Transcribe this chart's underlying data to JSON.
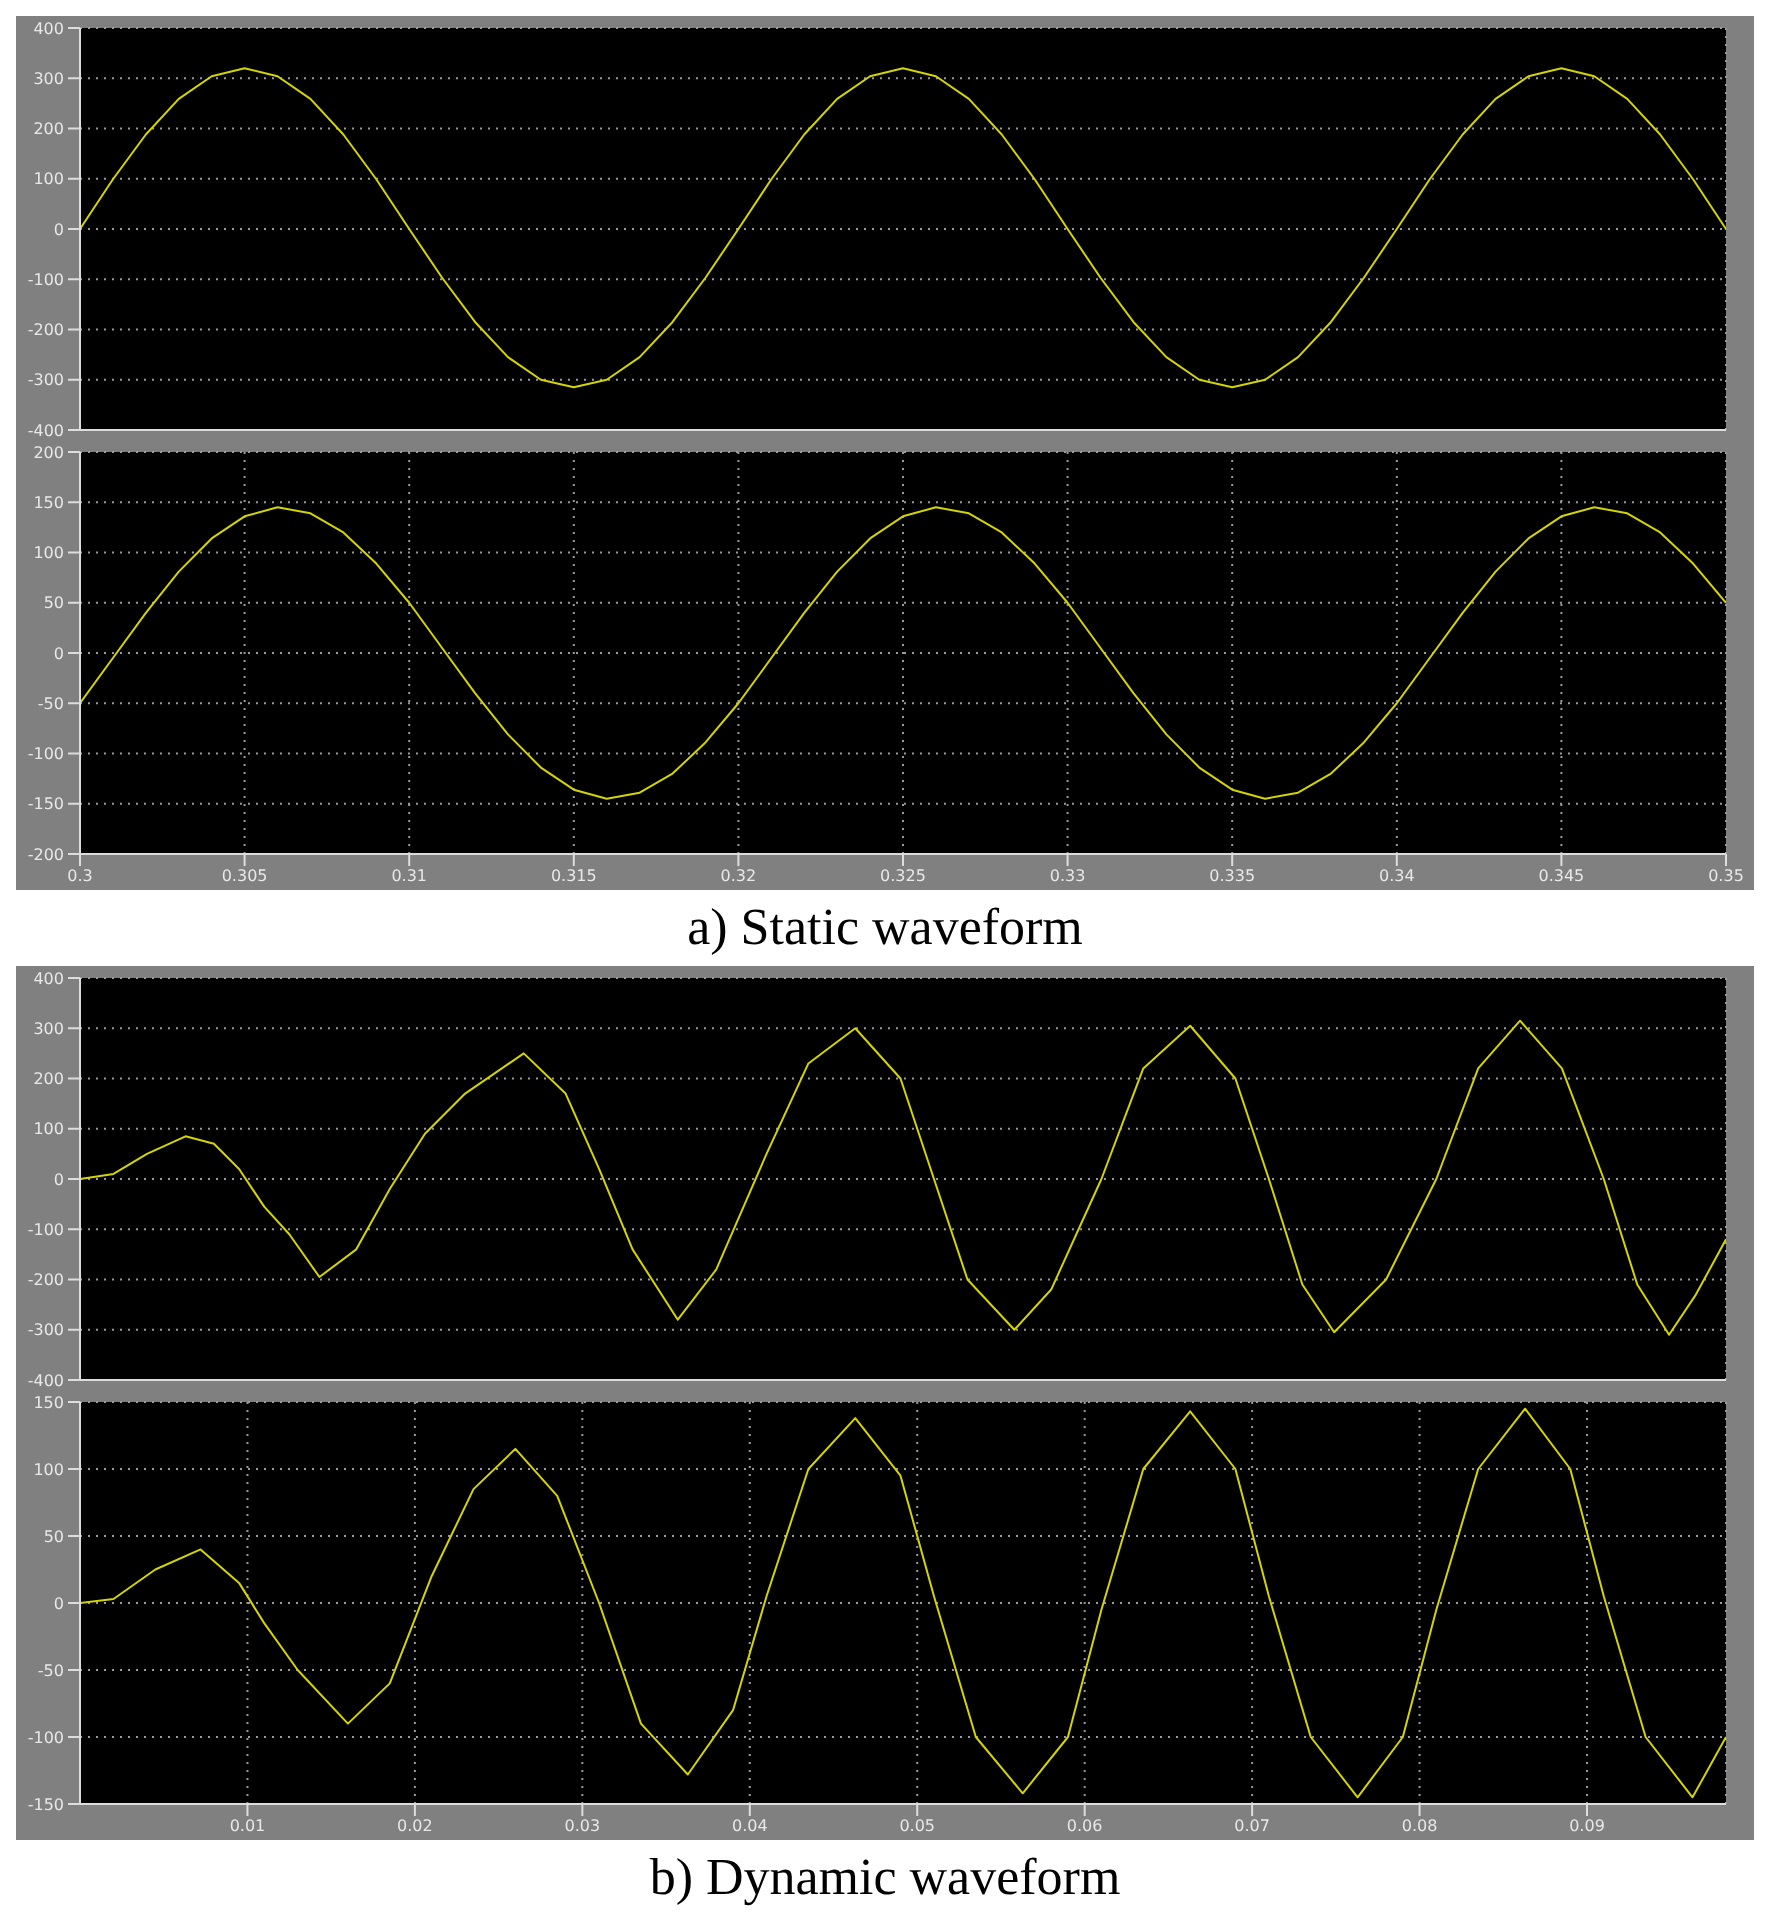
{
  "chart_data": [
    {
      "type": "line",
      "color": "#d4d400",
      "x": [
        0.3,
        0.301,
        0.302,
        0.303,
        0.304,
        0.305,
        0.306,
        0.307,
        0.308,
        0.309,
        0.31,
        0.311,
        0.312,
        0.313,
        0.314,
        0.315,
        0.316,
        0.317,
        0.318,
        0.319,
        0.32,
        0.321,
        0.322,
        0.323,
        0.324,
        0.325,
        0.326,
        0.327,
        0.328,
        0.329,
        0.33,
        0.331,
        0.332,
        0.333,
        0.334,
        0.335,
        0.336,
        0.337,
        0.338,
        0.339,
        0.34,
        0.341,
        0.342,
        0.343,
        0.344,
        0.345,
        0.346,
        0.347,
        0.348,
        0.349,
        0.35
      ],
      "values": [
        0,
        99,
        188,
        259,
        304,
        320,
        304,
        259,
        188,
        99,
        0,
        -97,
        -185,
        -255,
        -300,
        -315,
        -300,
        -255,
        -185,
        -97,
        0,
        99,
        188,
        259,
        304,
        320,
        304,
        259,
        188,
        99,
        0,
        -97,
        -185,
        -255,
        -300,
        -315,
        -300,
        -255,
        -185,
        -97,
        0,
        99,
        188,
        259,
        304,
        320,
        304,
        259,
        188,
        99,
        0
      ],
      "xlim": [
        0.3,
        0.35
      ],
      "xticks": [
        0.3,
        0.305,
        0.31,
        0.315,
        0.32,
        0.325,
        0.33,
        0.335,
        0.34,
        0.345,
        0.35
      ],
      "ylim": [
        -400,
        400
      ],
      "yticks": [
        -400,
        -300,
        -200,
        -100,
        0,
        100,
        200,
        300,
        400
      ],
      "grid": true,
      "marker": "none",
      "tick_labels": "y"
    },
    {
      "type": "line",
      "color": "#d4d400",
      "x": [
        0.3,
        0.301,
        0.302,
        0.303,
        0.304,
        0.305,
        0.306,
        0.307,
        0.308,
        0.309,
        0.31,
        0.311,
        0.312,
        0.313,
        0.314,
        0.315,
        0.316,
        0.317,
        0.318,
        0.319,
        0.32,
        0.321,
        0.322,
        0.323,
        0.324,
        0.325,
        0.326,
        0.327,
        0.328,
        0.329,
        0.33,
        0.331,
        0.332,
        0.333,
        0.334,
        0.335,
        0.336,
        0.337,
        0.338,
        0.339,
        0.34,
        0.341,
        0.342,
        0.343,
        0.344,
        0.345,
        0.346,
        0.347,
        0.348,
        0.349,
        0.35
      ],
      "values": [
        -50,
        -5,
        40,
        81,
        114,
        136,
        145,
        139,
        120,
        89,
        50,
        5,
        -40,
        -81,
        -114,
        -136,
        -145,
        -139,
        -120,
        -89,
        -50,
        -5,
        40,
        81,
        114,
        136,
        145,
        139,
        120,
        89,
        50,
        5,
        -40,
        -81,
        -114,
        -136,
        -145,
        -139,
        -120,
        -89,
        -50,
        -5,
        40,
        81,
        114,
        136,
        145,
        139,
        120,
        89,
        50
      ],
      "xlim": [
        0.3,
        0.35
      ],
      "xticks": [
        0.3,
        0.305,
        0.31,
        0.315,
        0.32,
        0.325,
        0.33,
        0.335,
        0.34,
        0.345,
        0.35
      ],
      "ylim": [
        -200,
        200
      ],
      "yticks": [
        -200,
        -150,
        -100,
        -50,
        0,
        50,
        100,
        150,
        200
      ],
      "grid": true,
      "marker": "none",
      "annotations": [
        "a) Static waveform"
      ]
    },
    {
      "type": "line",
      "color": "#d4d400",
      "x": [
        0,
        0.002,
        0.004,
        0.0063,
        0.008,
        0.0095,
        0.011,
        0.0125,
        0.0143,
        0.0165,
        0.0185,
        0.0206,
        0.023,
        0.0265,
        0.029,
        0.031,
        0.033,
        0.0357,
        0.038,
        0.041,
        0.0435,
        0.0463,
        0.049,
        0.051,
        0.053,
        0.0558,
        0.058,
        0.061,
        0.0635,
        0.0663,
        0.069,
        0.071,
        0.073,
        0.0749,
        0.078,
        0.081,
        0.0835,
        0.086,
        0.0885,
        0.091,
        0.093,
        0.0949,
        0.0965,
        0.0983
      ],
      "values": [
        0,
        10,
        50,
        85,
        70,
        20,
        -55,
        -110,
        -195,
        -140,
        -20,
        90,
        170,
        250,
        170,
        20,
        -140,
        -280,
        -180,
        50,
        230,
        300,
        200,
        0,
        -200,
        -300,
        -220,
        0,
        220,
        305,
        200,
        0,
        -210,
        -305,
        -200,
        0,
        220,
        315,
        220,
        0,
        -210,
        -310,
        -230,
        -120
      ],
      "xlim": [
        0,
        0.0983
      ],
      "xticks": [
        0.01,
        0.02,
        0.03,
        0.04,
        0.05,
        0.06,
        0.07,
        0.08,
        0.09
      ],
      "ylim": [
        -400,
        400
      ],
      "yticks": [
        -400,
        -300,
        -200,
        -100,
        0,
        100,
        200,
        300,
        400
      ],
      "grid": true,
      "marker": "none",
      "tick_labels": "y"
    },
    {
      "type": "line",
      "color": "#d4d400",
      "x": [
        0,
        0.002,
        0.0045,
        0.0072,
        0.0095,
        0.011,
        0.013,
        0.016,
        0.0185,
        0.021,
        0.0235,
        0.026,
        0.0285,
        0.031,
        0.0335,
        0.0363,
        0.039,
        0.041,
        0.0435,
        0.0463,
        0.049,
        0.051,
        0.0535,
        0.0563,
        0.059,
        0.061,
        0.0635,
        0.0663,
        0.069,
        0.071,
        0.0735,
        0.0763,
        0.079,
        0.081,
        0.0835,
        0.0863,
        0.089,
        0.091,
        0.0935,
        0.0963,
        0.0983
      ],
      "values": [
        0,
        3,
        25,
        40,
        15,
        -15,
        -50,
        -90,
        -60,
        20,
        85,
        115,
        80,
        0,
        -90,
        -128,
        -80,
        5,
        100,
        138,
        95,
        5,
        -100,
        -142,
        -100,
        -5,
        100,
        143,
        100,
        5,
        -100,
        -145,
        -100,
        -5,
        100,
        145,
        100,
        5,
        -100,
        -145,
        -100
      ],
      "xlim": [
        0,
        0.0983
      ],
      "xticks": [
        0.01,
        0.02,
        0.03,
        0.04,
        0.05,
        0.06,
        0.07,
        0.08,
        0.09
      ],
      "ylim": [
        -150,
        150
      ],
      "yticks": [
        -150,
        -100,
        -50,
        0,
        50,
        100,
        150
      ],
      "grid": true,
      "marker": "none",
      "annotations": [
        "b) Dynamic waveform"
      ]
    }
  ]
}
